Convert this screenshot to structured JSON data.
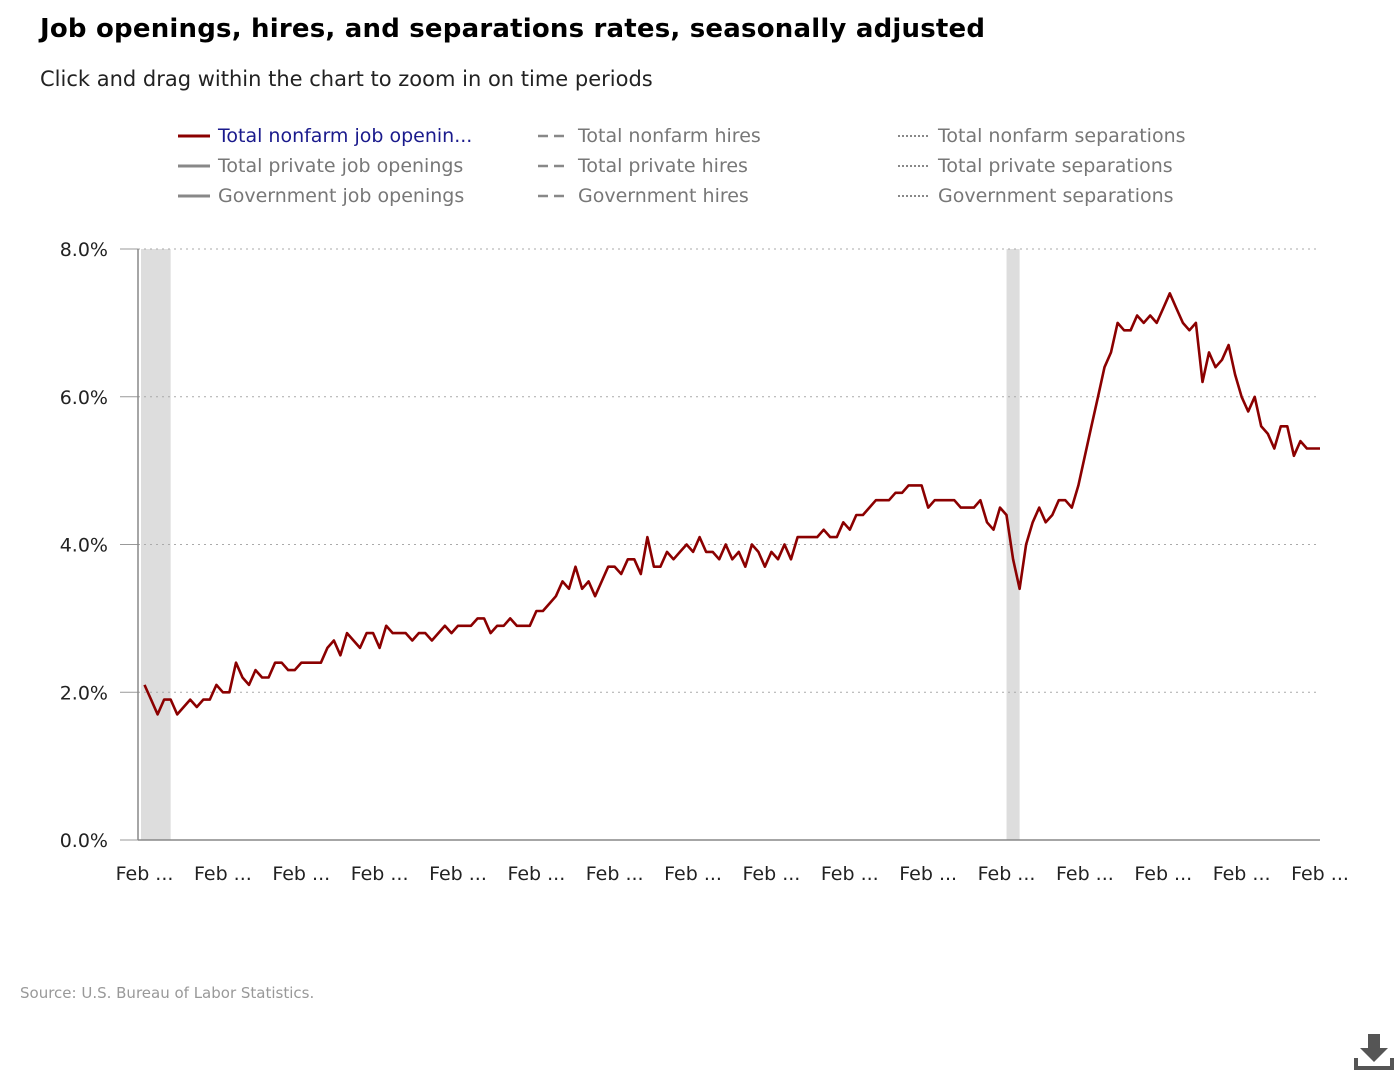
{
  "title": "Job openings, hires, and separations rates, seasonally adjusted",
  "subtitle": "Click and drag within the chart to zoom in on time periods",
  "source": "Source: U.S. Bureau of Labor Statistics.",
  "download_icon": "download-icon",
  "legend": [
    {
      "label": "Total nonfarm job openin...",
      "style": "solid",
      "color": "#8b0000",
      "active": true
    },
    {
      "label": "Total private job openings",
      "style": "solid",
      "color": "#888888",
      "active": false
    },
    {
      "label": "Government job openings",
      "style": "solid",
      "color": "#888888",
      "active": false
    },
    {
      "label": "Total nonfarm hires",
      "style": "dashed",
      "color": "#888888",
      "active": false
    },
    {
      "label": "Total private hires",
      "style": "dashed",
      "color": "#888888",
      "active": false
    },
    {
      "label": "Government hires",
      "style": "dashed",
      "color": "#888888",
      "active": false
    },
    {
      "label": "Total nonfarm separations",
      "style": "dotted",
      "color": "#888888",
      "active": false
    },
    {
      "label": "Total private separations",
      "style": "dotted",
      "color": "#888888",
      "active": false
    },
    {
      "label": "Government separations",
      "style": "dotted",
      "color": "#888888",
      "active": false
    }
  ],
  "chart_data": {
    "type": "line",
    "title": "Job openings, hires, and separations rates, seasonally adjusted",
    "ylim": [
      0,
      8
    ],
    "y_ticks": [
      0,
      2,
      4,
      6,
      8
    ],
    "y_tick_labels": [
      "0.0%",
      "2.0%",
      "4.0%",
      "6.0%",
      "8.0%"
    ],
    "x_range": [
      "2009-01",
      "2024-02"
    ],
    "x_ticks": [
      "2009-02",
      "2010-02",
      "2011-02",
      "2012-02",
      "2013-02",
      "2014-02",
      "2015-02",
      "2016-02",
      "2017-02",
      "2018-02",
      "2019-02",
      "2020-02",
      "2021-02",
      "2022-02",
      "2023-02",
      "2024-02"
    ],
    "x_tick_labels": [
      "Feb ...",
      "Feb ...",
      "Feb ...",
      "Feb ...",
      "Feb ...",
      "Feb ...",
      "Feb ...",
      "Feb ...",
      "Feb ...",
      "Feb ...",
      "Feb ...",
      "Feb ...",
      "Feb ...",
      "Feb ...",
      "Feb ...",
      "Feb ..."
    ],
    "grid": "horizontal dotted",
    "recession_shading": [
      [
        "2009-01",
        "2009-06"
      ],
      [
        "2020-02",
        "2020-04"
      ]
    ],
    "recession_color": "#dddddd",
    "series": [
      {
        "name": "Total nonfarm job openin...",
        "color": "#8b0000",
        "x": [
          "2009-02",
          "2009-03",
          "2009-04",
          "2009-05",
          "2009-06",
          "2009-07",
          "2009-08",
          "2009-09",
          "2009-10",
          "2009-11",
          "2009-12",
          "2010-01",
          "2010-02",
          "2010-03",
          "2010-04",
          "2010-05",
          "2010-06",
          "2010-07",
          "2010-08",
          "2010-09",
          "2010-10",
          "2010-11",
          "2010-12",
          "2011-01",
          "2011-02",
          "2011-03",
          "2011-04",
          "2011-05",
          "2011-06",
          "2011-07",
          "2011-08",
          "2011-09",
          "2011-10",
          "2011-11",
          "2011-12",
          "2012-01",
          "2012-02",
          "2012-03",
          "2012-04",
          "2012-05",
          "2012-06",
          "2012-07",
          "2012-08",
          "2012-09",
          "2012-10",
          "2012-11",
          "2012-12",
          "2013-01",
          "2013-02",
          "2013-03",
          "2013-04",
          "2013-05",
          "2013-06",
          "2013-07",
          "2013-08",
          "2013-09",
          "2013-10",
          "2013-11",
          "2013-12",
          "2014-01",
          "2014-02",
          "2014-03",
          "2014-04",
          "2014-05",
          "2014-06",
          "2014-07",
          "2014-08",
          "2014-09",
          "2014-10",
          "2014-11",
          "2014-12",
          "2015-01",
          "2015-02",
          "2015-03",
          "2015-04",
          "2015-05",
          "2015-06",
          "2015-07",
          "2015-08",
          "2015-09",
          "2015-10",
          "2015-11",
          "2015-12",
          "2016-01",
          "2016-02",
          "2016-03",
          "2016-04",
          "2016-05",
          "2016-06",
          "2016-07",
          "2016-08",
          "2016-09",
          "2016-10",
          "2016-11",
          "2016-12",
          "2017-01",
          "2017-02",
          "2017-03",
          "2017-04",
          "2017-05",
          "2017-06",
          "2017-07",
          "2017-08",
          "2017-09",
          "2017-10",
          "2017-11",
          "2017-12",
          "2018-01",
          "2018-02",
          "2018-03",
          "2018-04",
          "2018-05",
          "2018-06",
          "2018-07",
          "2018-08",
          "2018-09",
          "2018-10",
          "2018-11",
          "2018-12",
          "2019-01",
          "2019-02",
          "2019-03",
          "2019-04",
          "2019-05",
          "2019-06",
          "2019-07",
          "2019-08",
          "2019-09",
          "2019-10",
          "2019-11",
          "2019-12",
          "2020-01",
          "2020-02",
          "2020-03",
          "2020-04",
          "2020-05",
          "2020-06",
          "2020-07",
          "2020-08",
          "2020-09",
          "2020-10",
          "2020-11",
          "2020-12",
          "2021-01",
          "2021-02",
          "2021-03",
          "2021-04",
          "2021-05",
          "2021-06",
          "2021-07",
          "2021-08",
          "2021-09",
          "2021-10",
          "2021-11",
          "2021-12",
          "2022-01",
          "2022-02",
          "2022-03",
          "2022-04",
          "2022-05",
          "2022-06",
          "2022-07",
          "2022-08",
          "2022-09",
          "2022-10",
          "2022-11",
          "2022-12",
          "2023-01",
          "2023-02",
          "2023-03",
          "2023-04",
          "2023-05",
          "2023-06",
          "2023-07",
          "2023-08",
          "2023-09",
          "2023-10",
          "2023-11",
          "2023-12",
          "2024-01",
          "2024-02"
        ],
        "values": [
          2.1,
          1.9,
          1.7,
          1.9,
          1.9,
          1.7,
          1.8,
          1.9,
          1.8,
          1.9,
          1.9,
          2.1,
          2.0,
          2.0,
          2.4,
          2.2,
          2.1,
          2.3,
          2.2,
          2.2,
          2.4,
          2.4,
          2.3,
          2.3,
          2.4,
          2.4,
          2.4,
          2.4,
          2.6,
          2.7,
          2.5,
          2.8,
          2.7,
          2.6,
          2.8,
          2.8,
          2.6,
          2.9,
          2.8,
          2.8,
          2.8,
          2.7,
          2.8,
          2.8,
          2.7,
          2.8,
          2.9,
          2.8,
          2.9,
          2.9,
          2.9,
          3.0,
          3.0,
          2.8,
          2.9,
          2.9,
          3.0,
          2.9,
          2.9,
          2.9,
          3.1,
          3.1,
          3.2,
          3.3,
          3.5,
          3.4,
          3.7,
          3.4,
          3.5,
          3.3,
          3.5,
          3.7,
          3.7,
          3.6,
          3.8,
          3.8,
          3.6,
          4.1,
          3.7,
          3.7,
          3.9,
          3.8,
          3.9,
          4.0,
          3.9,
          4.1,
          3.9,
          3.9,
          3.8,
          4.0,
          3.8,
          3.9,
          3.7,
          4.0,
          3.9,
          3.7,
          3.9,
          3.8,
          4.0,
          3.8,
          4.1,
          4.1,
          4.1,
          4.1,
          4.2,
          4.1,
          4.1,
          4.3,
          4.2,
          4.4,
          4.4,
          4.5,
          4.6,
          4.6,
          4.6,
          4.7,
          4.7,
          4.8,
          4.8,
          4.8,
          4.5,
          4.6,
          4.6,
          4.6,
          4.6,
          4.5,
          4.5,
          4.5,
          4.6,
          4.3,
          4.2,
          4.5,
          4.4,
          3.8,
          3.4,
          4.0,
          4.3,
          4.5,
          4.3,
          4.4,
          4.6,
          4.6,
          4.5,
          4.8,
          5.2,
          5.6,
          6.0,
          6.4,
          6.6,
          7.0,
          6.9,
          6.9,
          7.1,
          7.0,
          7.1,
          7.0,
          7.2,
          7.4,
          7.2,
          7.0,
          6.9,
          7.0,
          6.2,
          6.6,
          6.4,
          6.5,
          6.7,
          6.3,
          6.0,
          5.8,
          6.0,
          5.6,
          5.5,
          5.3,
          5.6,
          5.6,
          5.2,
          5.4,
          5.3,
          5.3,
          5.3
        ]
      }
    ]
  }
}
